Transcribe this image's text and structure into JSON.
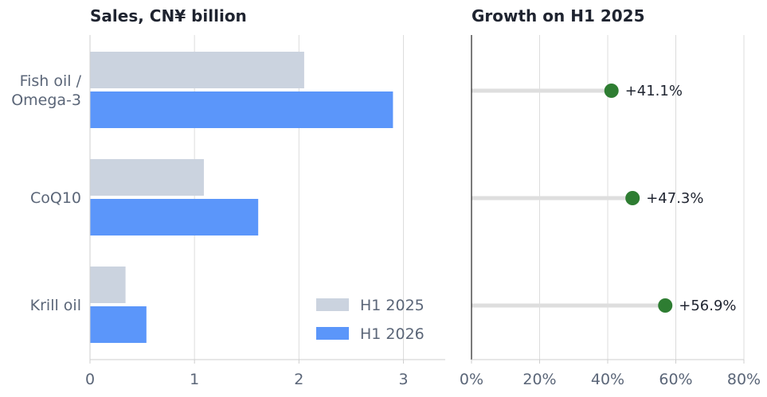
{
  "chart_data": [
    {
      "type": "bar",
      "orientation": "horizontal",
      "title": "Sales, CN¥ billion",
      "categories": [
        "Fish oil / Omega-3",
        "CoQ10",
        "Krill oil"
      ],
      "category_lines": [
        [
          "Fish oil /",
          "Omega-3"
        ],
        [
          "CoQ10"
        ],
        [
          "Krill oil"
        ]
      ],
      "series": [
        {
          "name": "H1 2025",
          "values": [
            2.05,
            1.09,
            0.34
          ],
          "color": "#cbd3df"
        },
        {
          "name": "H1 2026",
          "values": [
            2.9,
            1.61,
            0.54
          ],
          "color": "#5b96fa"
        }
      ],
      "xlim": [
        0,
        3.4
      ],
      "xticks": [
        0,
        1,
        2,
        3
      ],
      "tick_labels": [
        "0",
        "1",
        "2",
        "3"
      ],
      "grid": true,
      "legend_position": "bottom-right"
    },
    {
      "type": "dot",
      "title": "Growth on H1 2025",
      "categories": [
        "Fish oil / Omega-3",
        "CoQ10",
        "Krill oil"
      ],
      "values": [
        41.1,
        47.3,
        56.9
      ],
      "value_labels": [
        "+41.1%",
        "+47.3%",
        "+56.9%"
      ],
      "xlim": [
        0,
        80
      ],
      "xticks": [
        0,
        20,
        40,
        60,
        80
      ],
      "tick_labels": [
        "0%",
        "20%",
        "40%",
        "60%",
        "80%"
      ],
      "dot_color": "#2e7d32",
      "stem_color": "#dedede",
      "grid": true
    }
  ]
}
